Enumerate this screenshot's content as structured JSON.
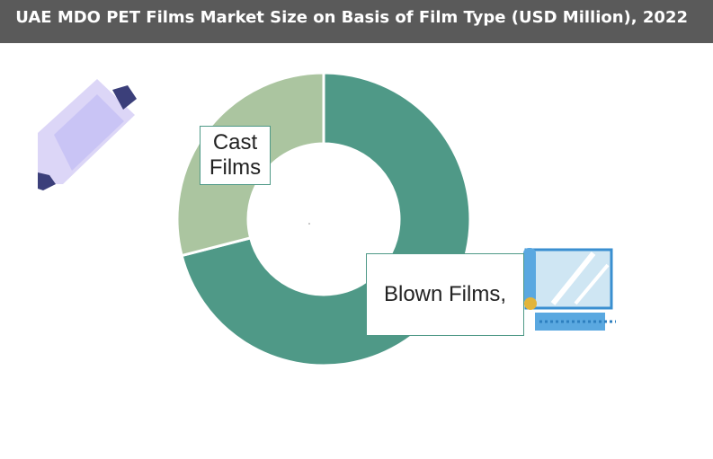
{
  "chart_data": {
    "type": "donut",
    "title": "UAE MDO PET Films Market Size on Basis of Film Type (USD Million), 2022",
    "categories": [
      "Blown Films,",
      "Cast Films"
    ],
    "values": [
      71,
      29
    ],
    "colors": [
      "#4f9987",
      "#abc5a0"
    ]
  }
}
